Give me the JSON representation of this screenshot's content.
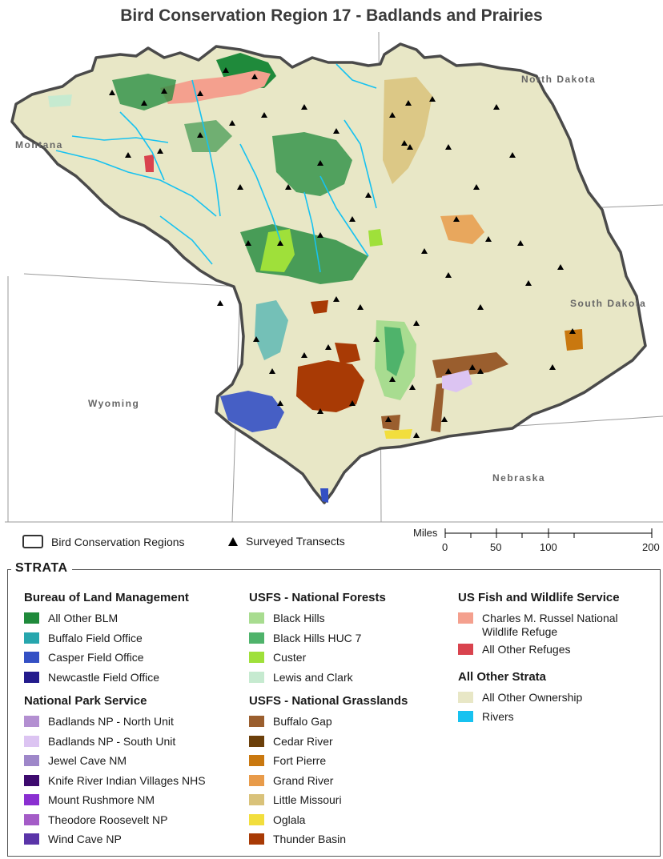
{
  "title": "Bird Conservation Region 17 - Badlands and Prairies",
  "states": [
    "North Dakota",
    "Montana",
    "South Dakota",
    "Wyoming",
    "Nebraska"
  ],
  "legend_top": {
    "bcr_label": "Bird Conservation Regions",
    "transects_label": "Surveyed Transects"
  },
  "scale": {
    "unit": "Miles",
    "labels": [
      "0",
      "50",
      "100",
      "200"
    ]
  },
  "strata": {
    "heading": "STRATA",
    "groups": [
      {
        "title": "Bureau of Land Management",
        "items": [
          {
            "label": "All Other BLM",
            "color": "#1f8a3b"
          },
          {
            "label": "Buffalo Field Office",
            "color": "#27a6ad"
          },
          {
            "label": "Casper Field Office",
            "color": "#3450c4"
          },
          {
            "label": "Newcastle Field Office",
            "color": "#231b8c"
          }
        ]
      },
      {
        "title": "National Park Service",
        "items": [
          {
            "label": "Badlands NP - North Unit",
            "color": "#b38fd1"
          },
          {
            "label": "Badlands NP - South Unit",
            "color": "#dcc4f2"
          },
          {
            "label": "Jewel Cave NM",
            "color": "#9e87c9"
          },
          {
            "label": "Knife River Indian Villages NHS",
            "color": "#3d0a6e"
          },
          {
            "label": "Mount Rushmore NM",
            "color": "#8a2fd1"
          },
          {
            "label": "Theodore Roosevelt NP",
            "color": "#a45cc7"
          },
          {
            "label": "Wind Cave NP",
            "color": "#5a34a8"
          }
        ]
      },
      {
        "title": "USFS - National Forests",
        "items": [
          {
            "label": "Black Hills",
            "color": "#a8dc90"
          },
          {
            "label": "Black Hills HUC 7",
            "color": "#4fb36b"
          },
          {
            "label": "Custer",
            "color": "#9fe03a"
          },
          {
            "label": "Lewis and Clark",
            "color": "#c6ead0"
          }
        ]
      },
      {
        "title": "USFS - National Grasslands",
        "items": [
          {
            "label": "Buffalo Gap",
            "color": "#9a5e2e"
          },
          {
            "label": "Cedar River",
            "color": "#6b3f0a"
          },
          {
            "label": "Fort Pierre",
            "color": "#c9780f"
          },
          {
            "label": "Grand River",
            "color": "#e89b4a"
          },
          {
            "label": "Little Missouri",
            "color": "#d9c27a"
          },
          {
            "label": "Oglala",
            "color": "#f2de3d"
          },
          {
            "label": "Thunder Basin",
            "color": "#a83a05"
          }
        ]
      },
      {
        "title": "US Fish and Wildlife Service",
        "items": [
          {
            "label": "Charles M. Russel National Wildlife Refuge",
            "color": "#f4a08e"
          },
          {
            "label": "All Other Refuges",
            "color": "#d9434e"
          }
        ]
      },
      {
        "title": "All Other Strata",
        "items": [
          {
            "label": "All Other Ownership",
            "color": "#e8e7c6"
          },
          {
            "label": "Rivers",
            "color": "#17c2f0"
          }
        ]
      }
    ]
  }
}
